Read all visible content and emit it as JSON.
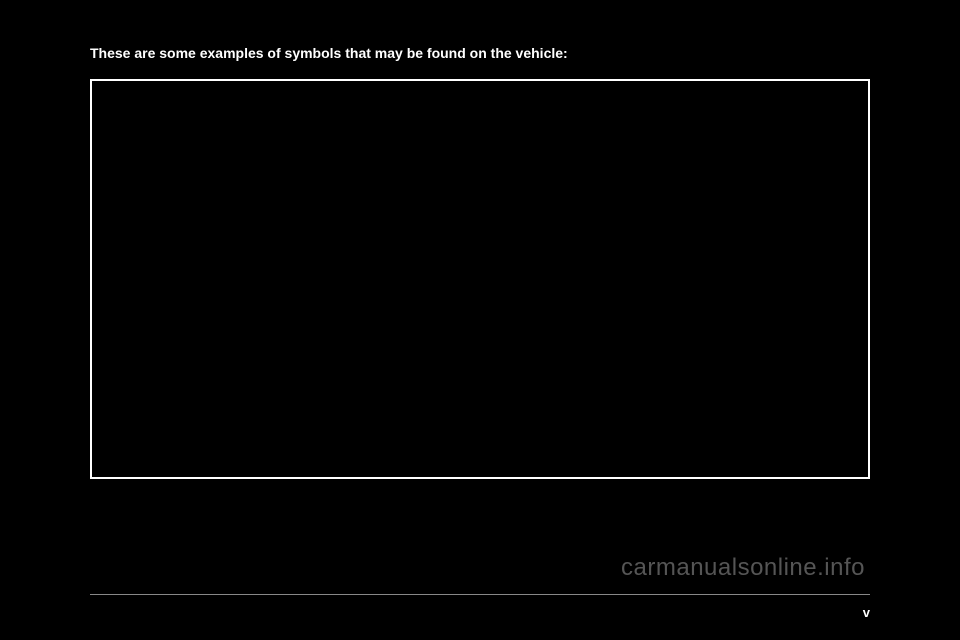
{
  "heading": "These are some examples of symbols that may be found on the vehicle:",
  "pageNumber": "v",
  "watermark": "carmanualsonline.info",
  "colors": {
    "background": "#000000",
    "text": "#ffffff",
    "border": "#ffffff",
    "divider": "#888888",
    "watermark": "#555555"
  }
}
